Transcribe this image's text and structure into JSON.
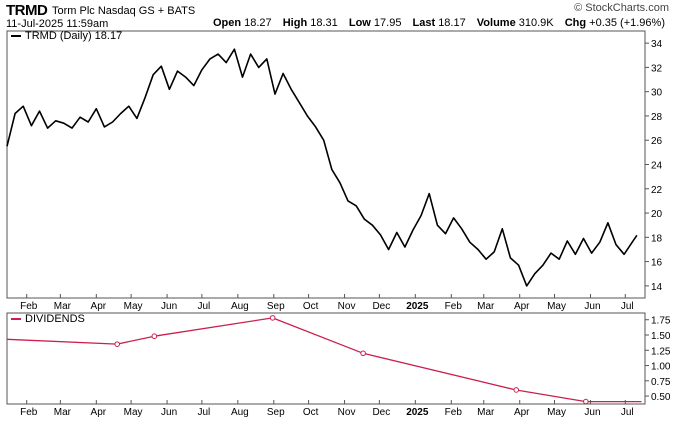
{
  "header": {
    "ticker": "TRMD",
    "company": "Torm Plc Nasdaq GS + BATS",
    "timestamp": "11-Jul-2025 11:59am",
    "logo": "© StockCharts.com",
    "quote": {
      "open_label": "Open",
      "open": "18.27",
      "high_label": "High",
      "high": "18.31",
      "low_label": "Low",
      "low": "17.95",
      "last_label": "Last",
      "last": "18.17",
      "volume_label": "Volume",
      "volume": "310.9K",
      "chg_label": "Chg",
      "chg": "+0.35 (+1.96%)",
      "chg_color": "#000000"
    }
  },
  "chart_data": [
    {
      "type": "line",
      "legend": "TRMD (Daily) 18.17",
      "line_color": "#000000",
      "ylim": [
        13,
        35
      ],
      "y_ticks": [
        "14",
        "16",
        "18",
        "20",
        "22",
        "24",
        "26",
        "28",
        "30",
        "32",
        "34"
      ],
      "y_tick_values": [
        14,
        16,
        18,
        20,
        22,
        24,
        26,
        28,
        30,
        32,
        34
      ],
      "x_range": [
        "2024-01-15",
        "2025-07-18"
      ],
      "x_tick_labels": [
        "Feb",
        "Mar",
        "Apr",
        "May",
        "Jun",
        "Jul",
        "Aug",
        "Sep",
        "Oct",
        "Nov",
        "Dec",
        "2025",
        "Feb",
        "Mar",
        "Apr",
        "May",
        "Jun",
        "Jul"
      ],
      "x_tick_dates": [
        "2024-02-01",
        "2024-03-01",
        "2024-04-01",
        "2024-05-01",
        "2024-06-01",
        "2024-07-01",
        "2024-08-01",
        "2024-09-01",
        "2024-10-01",
        "2024-11-01",
        "2024-12-01",
        "2025-01-01",
        "2025-02-01",
        "2025-03-01",
        "2025-04-01",
        "2025-05-01",
        "2025-06-01",
        "2025-07-01"
      ],
      "x": [
        "2024-01-15",
        "2024-01-22",
        "2024-01-29",
        "2024-02-05",
        "2024-02-12",
        "2024-02-19",
        "2024-02-26",
        "2024-03-04",
        "2024-03-11",
        "2024-03-18",
        "2024-03-25",
        "2024-04-01",
        "2024-04-08",
        "2024-04-15",
        "2024-04-22",
        "2024-04-29",
        "2024-05-06",
        "2024-05-13",
        "2024-05-20",
        "2024-05-27",
        "2024-06-03",
        "2024-06-10",
        "2024-06-17",
        "2024-06-24",
        "2024-07-01",
        "2024-07-08",
        "2024-07-15",
        "2024-07-22",
        "2024-07-29",
        "2024-08-05",
        "2024-08-12",
        "2024-08-19",
        "2024-08-26",
        "2024-09-02",
        "2024-09-09",
        "2024-09-16",
        "2024-09-23",
        "2024-09-30",
        "2024-10-07",
        "2024-10-14",
        "2024-10-21",
        "2024-10-28",
        "2024-11-04",
        "2024-11-11",
        "2024-11-18",
        "2024-11-25",
        "2024-12-02",
        "2024-12-09",
        "2024-12-16",
        "2024-12-23",
        "2024-12-30",
        "2025-01-06",
        "2025-01-13",
        "2025-01-20",
        "2025-01-27",
        "2025-02-03",
        "2025-02-10",
        "2025-02-17",
        "2025-02-24",
        "2025-03-03",
        "2025-03-10",
        "2025-03-17",
        "2025-03-24",
        "2025-03-31",
        "2025-04-07",
        "2025-04-14",
        "2025-04-21",
        "2025-04-28",
        "2025-05-05",
        "2025-05-12",
        "2025-05-19",
        "2025-05-26",
        "2025-06-02",
        "2025-06-09",
        "2025-06-16",
        "2025-06-23",
        "2025-06-30",
        "2025-07-07",
        "2025-07-11"
      ],
      "values": [
        25.5,
        28.2,
        28.8,
        27.2,
        28.4,
        27.0,
        27.6,
        27.4,
        27.0,
        27.9,
        27.5,
        28.6,
        27.1,
        27.5,
        28.2,
        28.8,
        27.8,
        29.5,
        31.4,
        32.1,
        30.2,
        31.7,
        31.2,
        30.5,
        31.8,
        32.7,
        33.1,
        32.4,
        33.5,
        31.2,
        33.1,
        32.0,
        32.7,
        29.8,
        31.5,
        30.2,
        29.1,
        28.0,
        27.1,
        26.0,
        23.6,
        22.5,
        21.0,
        20.6,
        19.5,
        19.0,
        18.2,
        17.0,
        18.4,
        17.2,
        18.6,
        19.8,
        21.6,
        19.0,
        18.3,
        19.6,
        18.7,
        17.6,
        17.0,
        16.2,
        16.8,
        18.7,
        16.3,
        15.7,
        14.0,
        15.0,
        15.7,
        16.7,
        16.2,
        17.7,
        16.6,
        17.9,
        16.7,
        17.6,
        19.2,
        17.4,
        16.6,
        17.6,
        18.17
      ]
    },
    {
      "type": "line",
      "legend": "DIVIDENDS",
      "line_color": "#cc1f4f",
      "ylim": [
        0.37,
        1.86
      ],
      "y_ticks": [
        "0.50",
        "0.75",
        "1.00",
        "1.25",
        "1.50",
        "1.75"
      ],
      "y_tick_values": [
        0.5,
        0.75,
        1.0,
        1.25,
        1.5,
        1.75
      ],
      "x_range": [
        "2024-01-15",
        "2025-07-18"
      ],
      "x_tick_labels": [
        "Feb",
        "Mar",
        "Apr",
        "May",
        "Jun",
        "Jul",
        "Aug",
        "Sep",
        "Oct",
        "Nov",
        "Dec",
        "2025",
        "Feb",
        "Mar",
        "Apr",
        "May",
        "Jun",
        "Jul"
      ],
      "x_tick_dates": [
        "2024-02-01",
        "2024-03-01",
        "2024-04-01",
        "2024-05-01",
        "2024-06-01",
        "2024-07-01",
        "2024-08-01",
        "2024-09-01",
        "2024-10-01",
        "2024-11-01",
        "2024-12-01",
        "2025-01-01",
        "2025-02-01",
        "2025-03-01",
        "2025-04-01",
        "2025-05-01",
        "2025-06-01",
        "2025-07-01"
      ],
      "x": [
        "2024-01-15",
        "2024-04-19",
        "2024-05-21",
        "2024-08-31",
        "2024-11-17",
        "2025-03-29",
        "2025-05-28",
        "2025-07-15"
      ],
      "values": [
        1.43,
        1.35,
        1.48,
        1.78,
        1.2,
        0.6,
        0.41,
        0.41
      ],
      "markers": [
        false,
        true,
        true,
        true,
        true,
        true,
        true,
        false
      ]
    }
  ]
}
